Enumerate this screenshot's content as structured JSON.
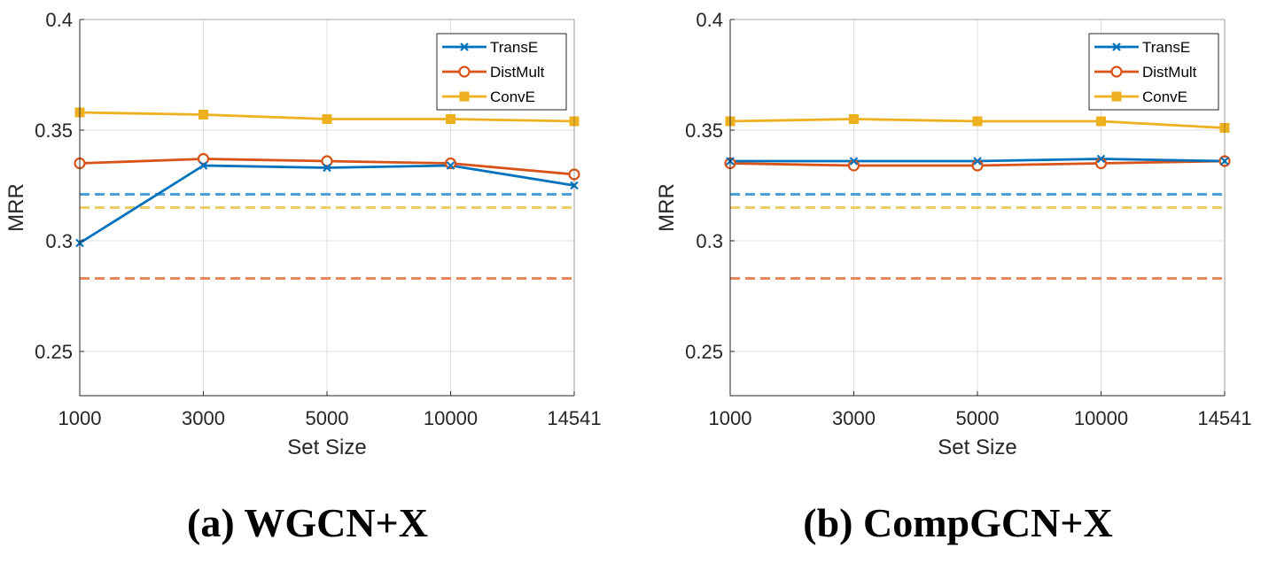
{
  "chart_data": [
    {
      "type": "line",
      "title": "",
      "caption": "(a) WGCN+X",
      "xlabel": "Set Size",
      "ylabel": "MRR",
      "categories": [
        "1000",
        "3000",
        "5000",
        "10000",
        "14541"
      ],
      "ylim": [
        0.23,
        0.4
      ],
      "yticks": [
        "0.25",
        "0.3",
        "0.35",
        "0.4"
      ],
      "grid": true,
      "legend_position": "top-right",
      "series": [
        {
          "name": "TransE",
          "color": "#0072BD",
          "marker": "x",
          "values": [
            0.299,
            0.334,
            0.333,
            0.334,
            0.325
          ],
          "baseline": 0.321,
          "baseline_color": "#4DA0D9"
        },
        {
          "name": "DistMult",
          "color": "#D95319",
          "marker": "o",
          "values": [
            0.335,
            0.337,
            0.336,
            0.335,
            0.33
          ],
          "baseline": 0.283,
          "baseline_color": "#E8875E"
        },
        {
          "name": "ConvE",
          "color": "#EDB120",
          "marker": "s",
          "values": [
            0.358,
            0.357,
            0.355,
            0.355,
            0.354
          ],
          "baseline": 0.315,
          "baseline_color": "#F0CC66"
        }
      ]
    },
    {
      "type": "line",
      "title": "",
      "caption": "(b) CompGCN+X",
      "xlabel": "Set Size",
      "ylabel": "MRR",
      "categories": [
        "1000",
        "3000",
        "5000",
        "10000",
        "14541"
      ],
      "ylim": [
        0.23,
        0.4
      ],
      "yticks": [
        "0.25",
        "0.3",
        "0.35",
        "0.4"
      ],
      "grid": true,
      "legend_position": "top-right",
      "series": [
        {
          "name": "TransE",
          "color": "#0072BD",
          "marker": "x",
          "values": [
            0.336,
            0.336,
            0.336,
            0.337,
            0.336
          ],
          "baseline": 0.321,
          "baseline_color": "#4DA0D9"
        },
        {
          "name": "DistMult",
          "color": "#D95319",
          "marker": "o",
          "values": [
            0.335,
            0.334,
            0.334,
            0.335,
            0.336
          ],
          "baseline": 0.283,
          "baseline_color": "#E8875E"
        },
        {
          "name": "ConvE",
          "color": "#EDB120",
          "marker": "s",
          "values": [
            0.354,
            0.355,
            0.354,
            0.354,
            0.351
          ],
          "baseline": 0.315,
          "baseline_color": "#F0CC66"
        }
      ]
    }
  ]
}
